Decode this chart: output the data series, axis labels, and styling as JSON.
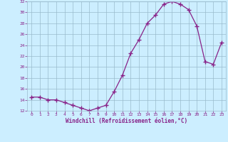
{
  "x": [
    0,
    1,
    2,
    3,
    4,
    5,
    6,
    7,
    8,
    9,
    10,
    11,
    12,
    13,
    14,
    15,
    16,
    17,
    18,
    19,
    20,
    21,
    22,
    23
  ],
  "y": [
    14.5,
    14.5,
    14.0,
    14.0,
    13.5,
    13.0,
    12.5,
    12.0,
    12.5,
    13.0,
    15.5,
    18.5,
    22.5,
    25.0,
    28.0,
    29.5,
    31.5,
    32.0,
    31.5,
    30.5,
    27.5,
    21.0,
    20.5,
    24.5
  ],
  "line_color": "#882288",
  "marker": "+",
  "marker_color": "#882288",
  "bg_color": "#cceeff",
  "grid_color": "#99bbcc",
  "xlabel": "Windchill (Refroidissement éolien,°C)",
  "xlabel_color": "#882288",
  "tick_color": "#882288",
  "ylim": [
    12,
    32
  ],
  "xlim": [
    -0.5,
    23.5
  ],
  "yticks": [
    12,
    14,
    16,
    18,
    20,
    22,
    24,
    26,
    28,
    30,
    32
  ],
  "xticks": [
    0,
    1,
    2,
    3,
    4,
    5,
    6,
    7,
    8,
    9,
    10,
    11,
    12,
    13,
    14,
    15,
    16,
    17,
    18,
    19,
    20,
    21,
    22,
    23
  ],
  "figsize": [
    3.2,
    2.0
  ],
  "dpi": 100
}
